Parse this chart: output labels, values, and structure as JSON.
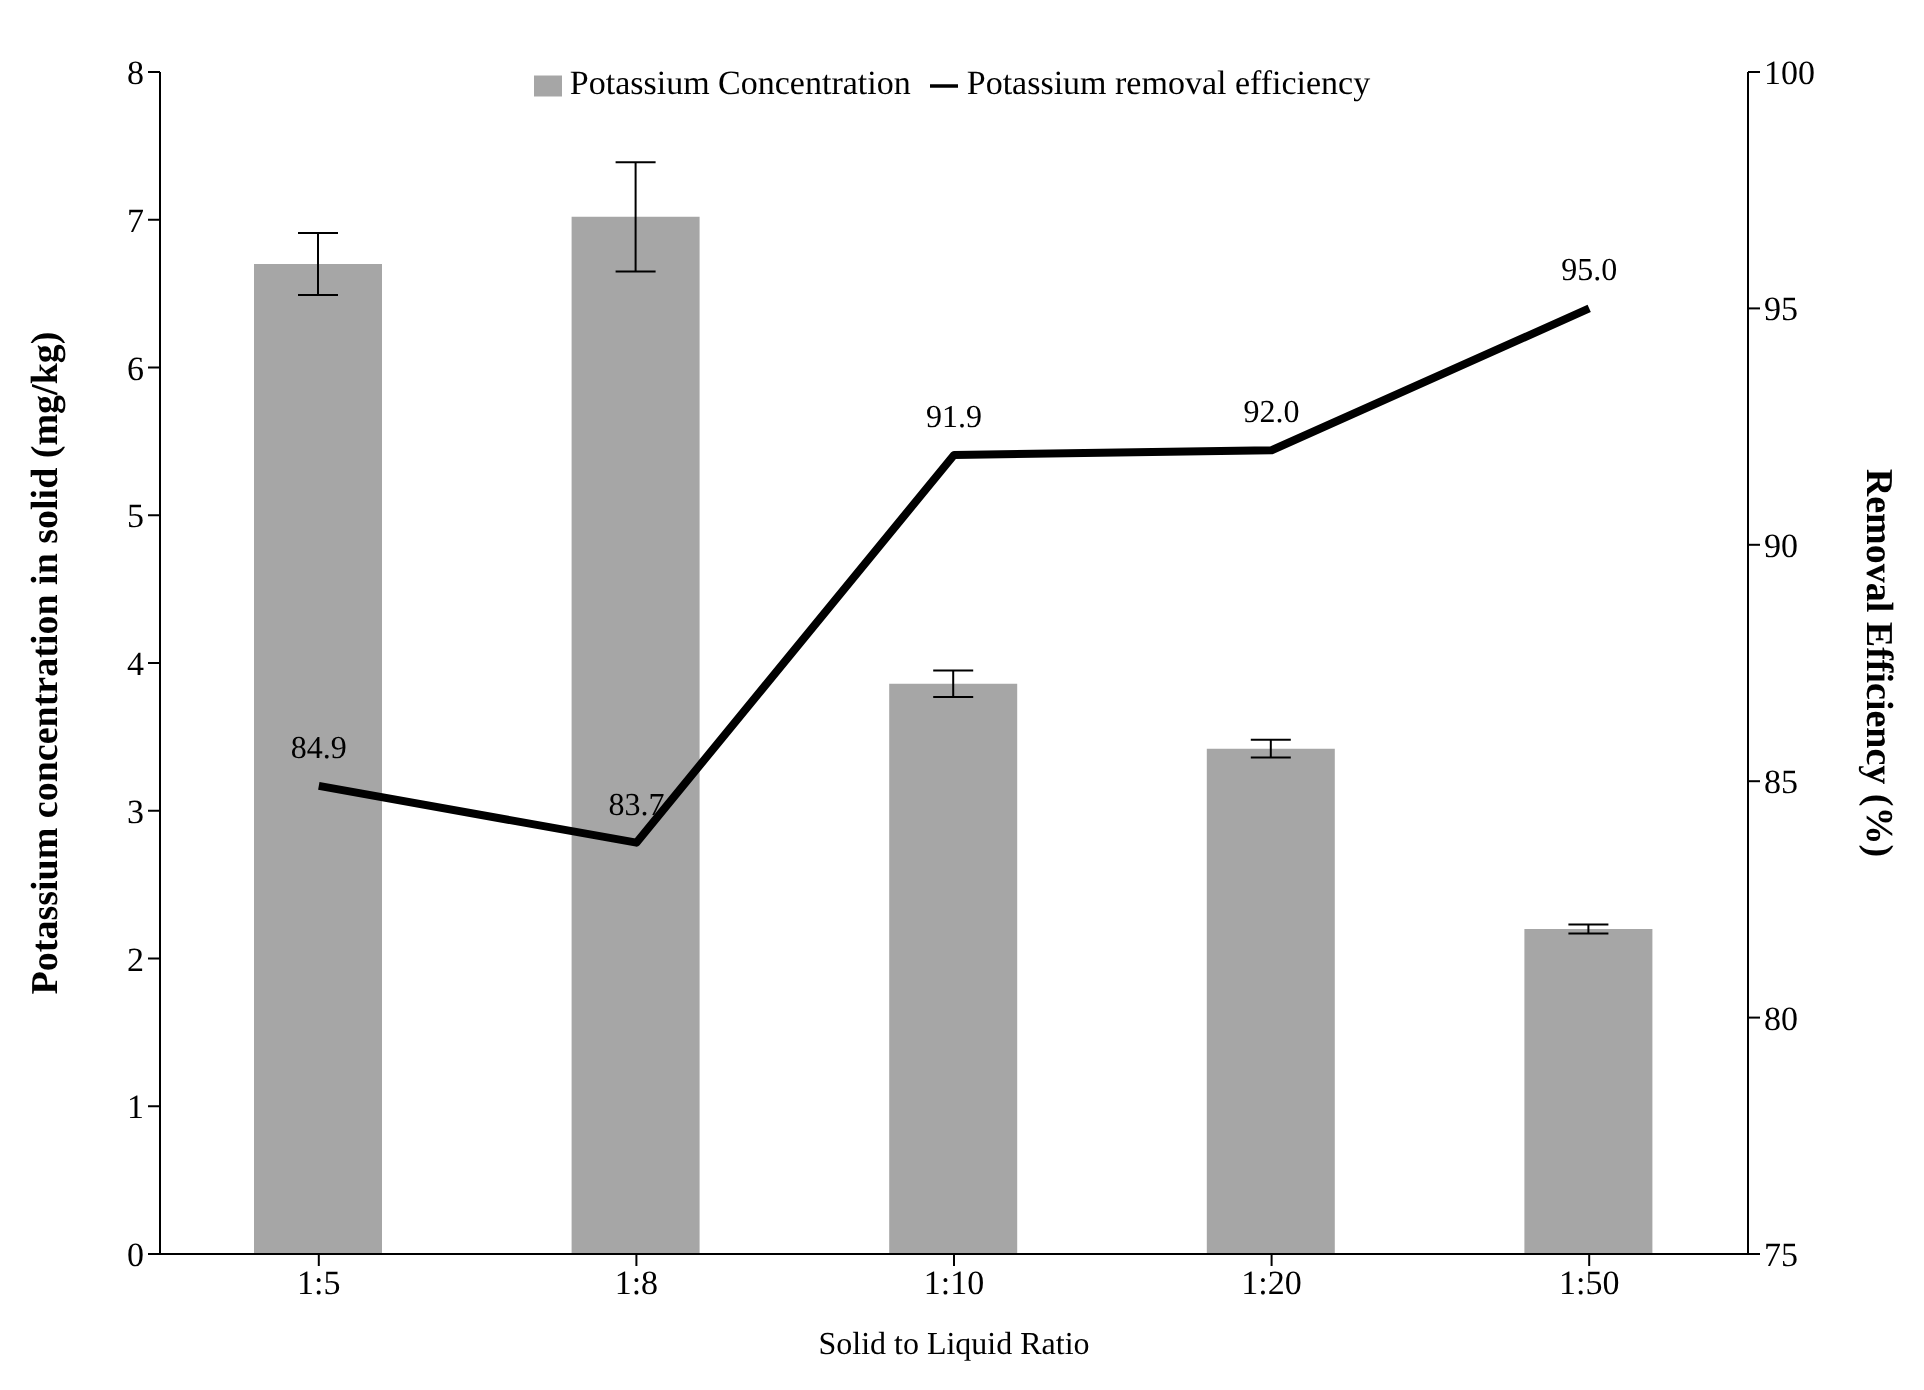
{
  "chart_data": {
    "type": "bar",
    "xlabel": "Solid to Liquid Ratio",
    "ylabel": "Potassium concentration in solid (mg/kg)",
    "y2label": "Removal Efficiency (%)",
    "categories": [
      "1:5",
      "1:8",
      "1:10",
      "1:20",
      "1:50"
    ],
    "series": [
      {
        "name": "Potassium Concentration",
        "color": "#a6a6a6",
        "values": [
          6.7,
          7.02,
          3.86,
          3.42,
          2.2
        ],
        "errors": [
          0.21,
          0.37,
          0.09,
          0.06,
          0.03
        ]
      },
      {
        "name": "Potassium removal efficiency",
        "type": "line",
        "axis": "y2",
        "color": "#000000",
        "values": [
          84.9,
          83.7,
          91.9,
          92.0,
          95.0
        ],
        "value_labels": [
          "84.9",
          "83.7",
          "91.9",
          "92.0",
          "95.0"
        ],
        "marker": "none"
      }
    ],
    "ylim": [
      0,
      8
    ],
    "yticks": [
      0,
      1,
      2,
      3,
      4,
      5,
      6,
      7,
      8
    ],
    "y2lim": [
      75,
      100
    ],
    "y2ticks": [
      75,
      80,
      85,
      90,
      95,
      100
    ],
    "legend": "top"
  }
}
